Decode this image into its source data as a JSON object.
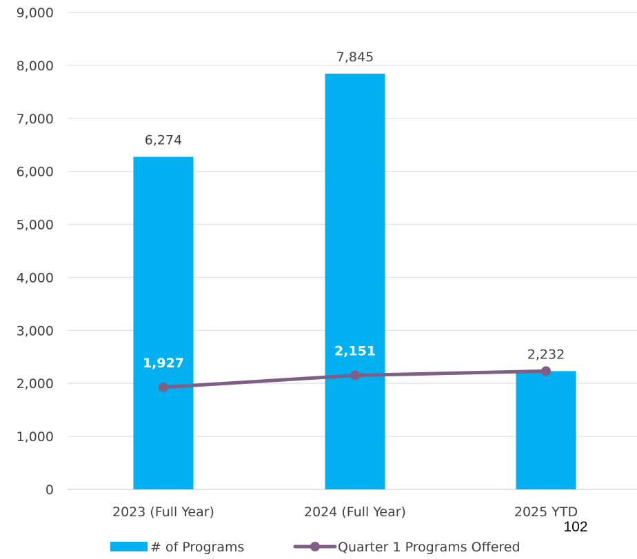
{
  "chart_data": {
    "type": "bar",
    "categories": [
      "2023 (Full Year)",
      "2024 (Full Year)",
      "2025 YTD"
    ],
    "series": [
      {
        "name": "# of Programs",
        "kind": "bar",
        "values": [
          6274,
          7845,
          2232
        ],
        "labels": [
          "6,274",
          "7,845",
          "2,232"
        ],
        "color": "#00B0F0"
      },
      {
        "name": "Quarter 1 Programs Offered",
        "kind": "line",
        "values": [
          1927,
          2151,
          2232
        ],
        "labels": [
          "1,927",
          "2,151",
          ""
        ],
        "color": "#7F5F86"
      }
    ],
    "ylim": [
      0,
      9000
    ],
    "yticks": [
      0,
      1000,
      2000,
      3000,
      4000,
      5000,
      6000,
      7000,
      8000,
      9000
    ],
    "ytick_labels": [
      "0",
      "1,000",
      "2,000",
      "3,000",
      "4,000",
      "5,000",
      "6,000",
      "7,000",
      "8,000",
      "9,000"
    ],
    "grid": true,
    "legend_position": "bottom"
  },
  "page_number": "102"
}
